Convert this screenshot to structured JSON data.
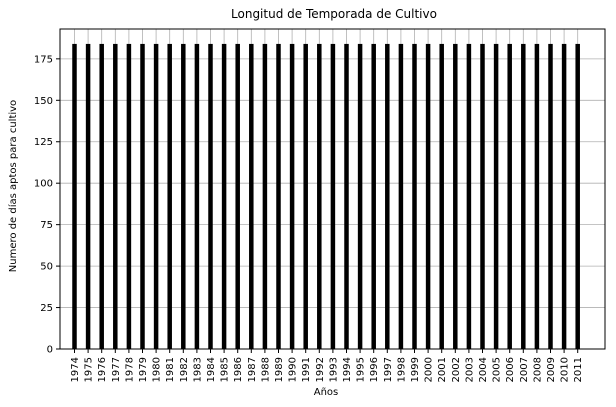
{
  "chart_data": {
    "type": "bar",
    "title": "Longitud de Temporada de Cultivo",
    "xlabel": "Años",
    "ylabel": "Numero de días aptos para cultivo",
    "categories": [
      "1974",
      "1975",
      "1976",
      "1977",
      "1978",
      "1979",
      "1980",
      "1981",
      "1982",
      "1983",
      "1984",
      "1985",
      "1986",
      "1987",
      "1988",
      "1989",
      "1990",
      "1991",
      "1992",
      "1993",
      "1994",
      "1995",
      "1996",
      "1997",
      "1998",
      "1999",
      "2000",
      "2001",
      "2002",
      "2003",
      "2004",
      "2005",
      "2006",
      "2007",
      "2008",
      "2009",
      "2010",
      "2011"
    ],
    "values": [
      184,
      184,
      184,
      184,
      184,
      184,
      184,
      184,
      184,
      184,
      184,
      184,
      184,
      184,
      184,
      184,
      184,
      184,
      184,
      184,
      184,
      184,
      184,
      184,
      184,
      184,
      184,
      184,
      184,
      184,
      184,
      184,
      184,
      184,
      184,
      184,
      184,
      184
    ],
    "ylim": [
      0,
      193
    ],
    "yticks": [
      0,
      25,
      50,
      75,
      100,
      125,
      150,
      175
    ],
    "grid": true,
    "bar_color": "#000000",
    "grid_color": "#b0b0b0"
  }
}
